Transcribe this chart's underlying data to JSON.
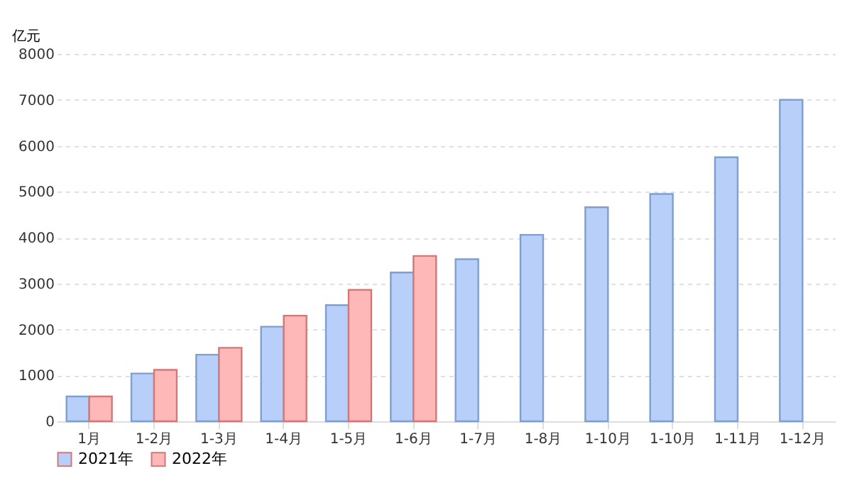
{
  "chart_data": {
    "type": "bar",
    "ylabel": "亿元",
    "categories": [
      "1月",
      "1-2月",
      "1-3月",
      "1-4月",
      "1-5月",
      "1-6月",
      "1-7月",
      "1-8月",
      "1-10月",
      "1-10月",
      "1-11月",
      "1-12月"
    ],
    "series": [
      {
        "name": "2021年",
        "color": "#b8cffa",
        "values": [
          540,
          1040,
          1450,
          2060,
          2530,
          3240,
          3530,
          4060,
          4660,
          4950,
          5750,
          7000
        ]
      },
      {
        "name": "2022年",
        "color": "#ffb8b8",
        "values": [
          540,
          1120,
          1600,
          2300,
          2860,
          3600,
          null,
          null,
          null,
          null,
          null,
          null
        ]
      }
    ],
    "ylim": [
      0,
      8000
    ],
    "yticks": [
      0,
      1000,
      2000,
      3000,
      4000,
      5000,
      6000,
      7000,
      8000
    ],
    "grid": "y",
    "legend": "bottom"
  }
}
